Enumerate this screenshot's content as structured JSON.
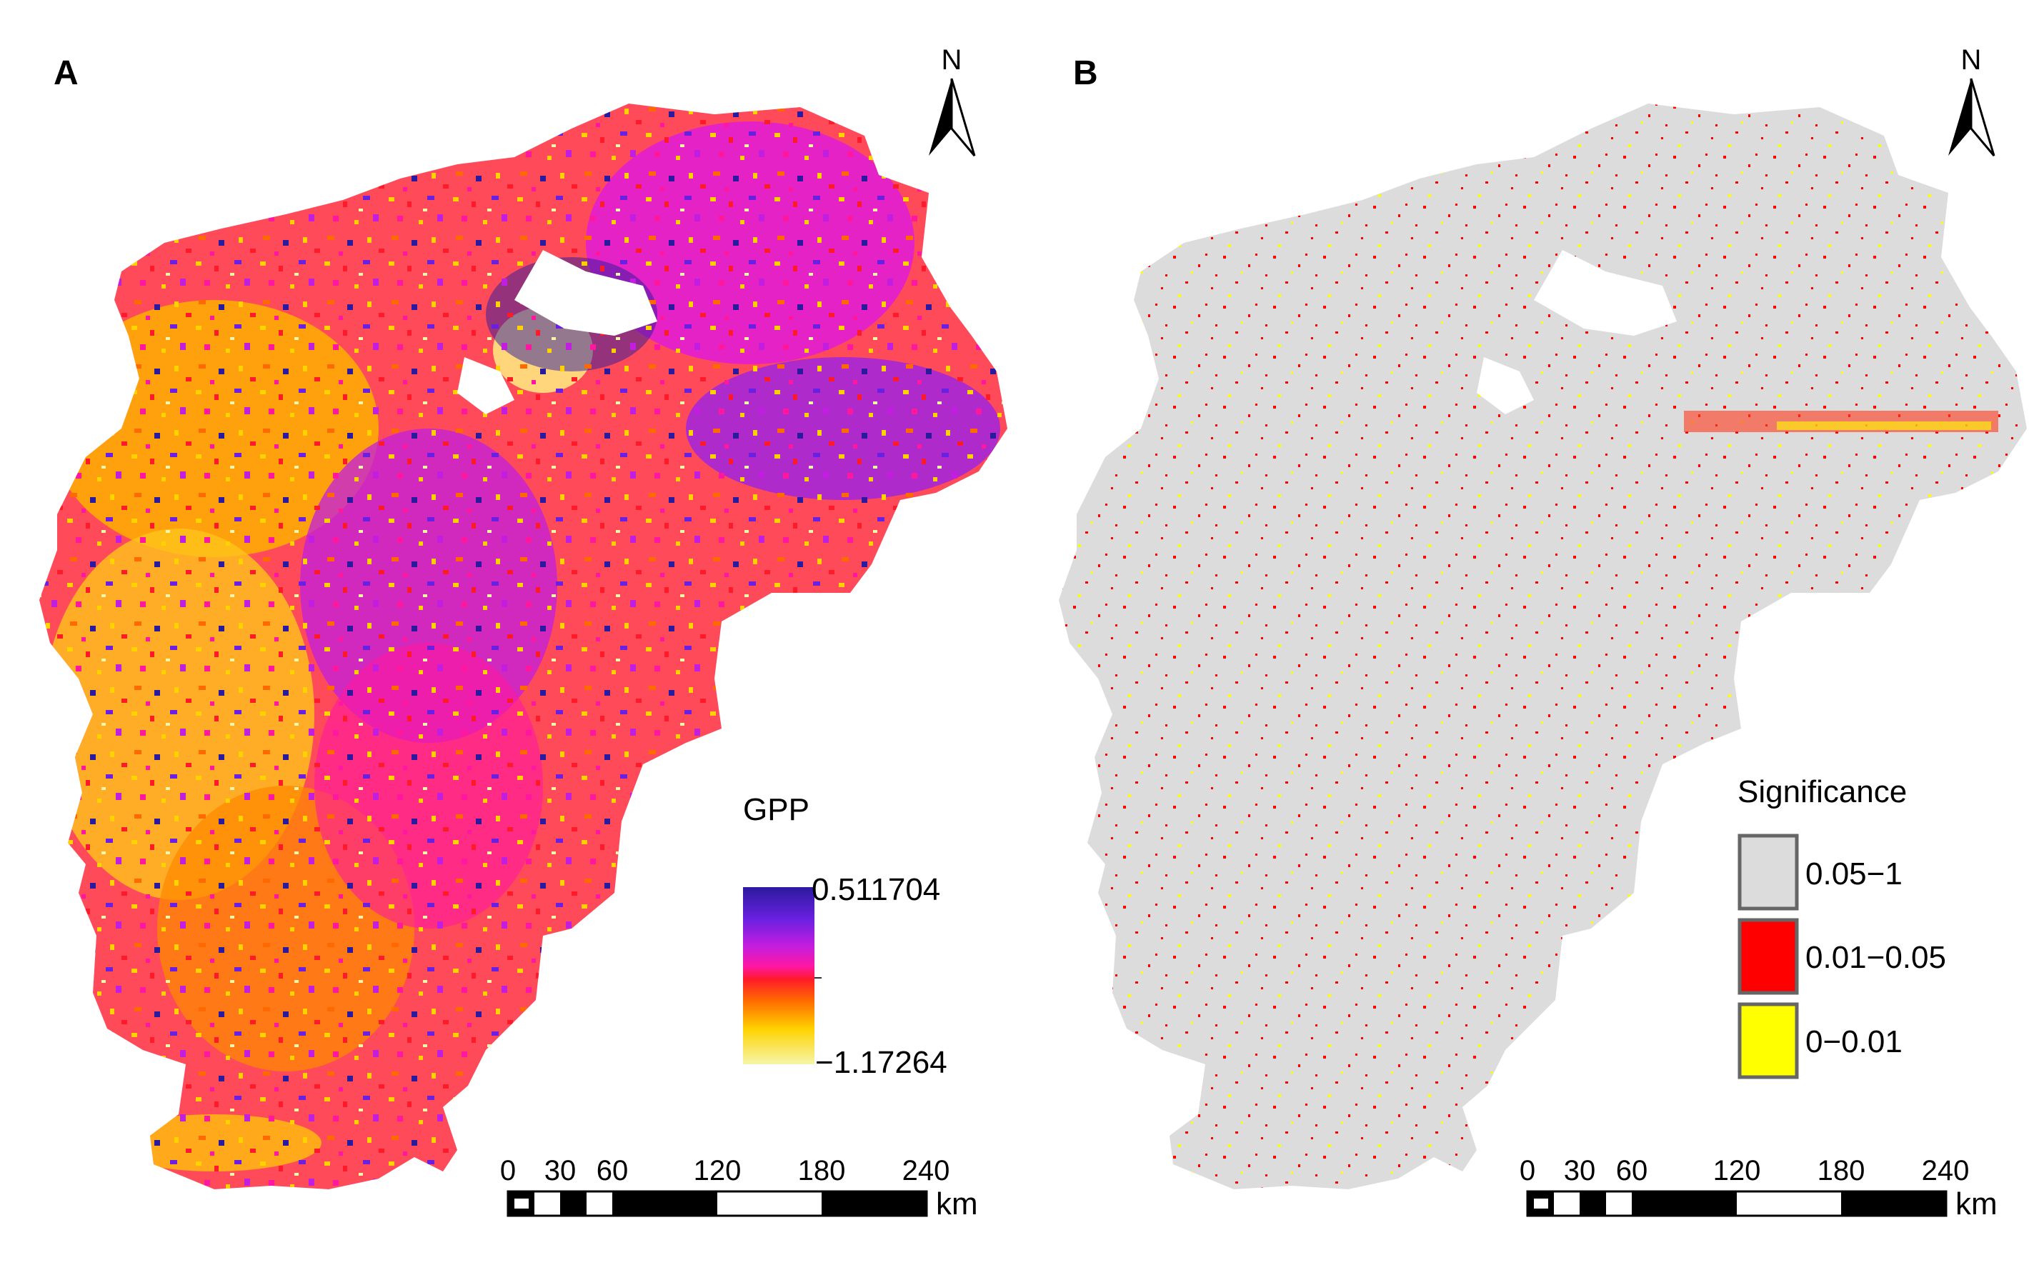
{
  "panel_a": {
    "letter": "A",
    "north": "N",
    "legend": {
      "title": "GPP",
      "max_label": "0.511704",
      "min_label": "−1.17264",
      "max_value": 0.511704,
      "min_value": -1.17264,
      "gradient_colors": [
        "#2a1a9e",
        "#6a20e0",
        "#c21ee0",
        "#ff17a0",
        "#ff1a2a",
        "#ff6a00",
        "#ffd200",
        "#f5f5a8"
      ]
    },
    "scale": {
      "ticks": [
        "0",
        "30",
        "60",
        "120",
        "180",
        "240"
      ],
      "unit": "km"
    }
  },
  "panel_b": {
    "letter": "B",
    "north": "N",
    "legend": {
      "title": "Significance",
      "classes": [
        {
          "label": "0.05−1",
          "color": "#dcdcdc"
        },
        {
          "label": "0.01−0.05",
          "color": "#ff0000"
        },
        {
          "label": "0−0.01",
          "color": "#ffff00"
        }
      ]
    },
    "scale": {
      "ticks": [
        "0",
        "30",
        "60",
        "120",
        "180",
        "240"
      ],
      "unit": "km"
    }
  }
}
